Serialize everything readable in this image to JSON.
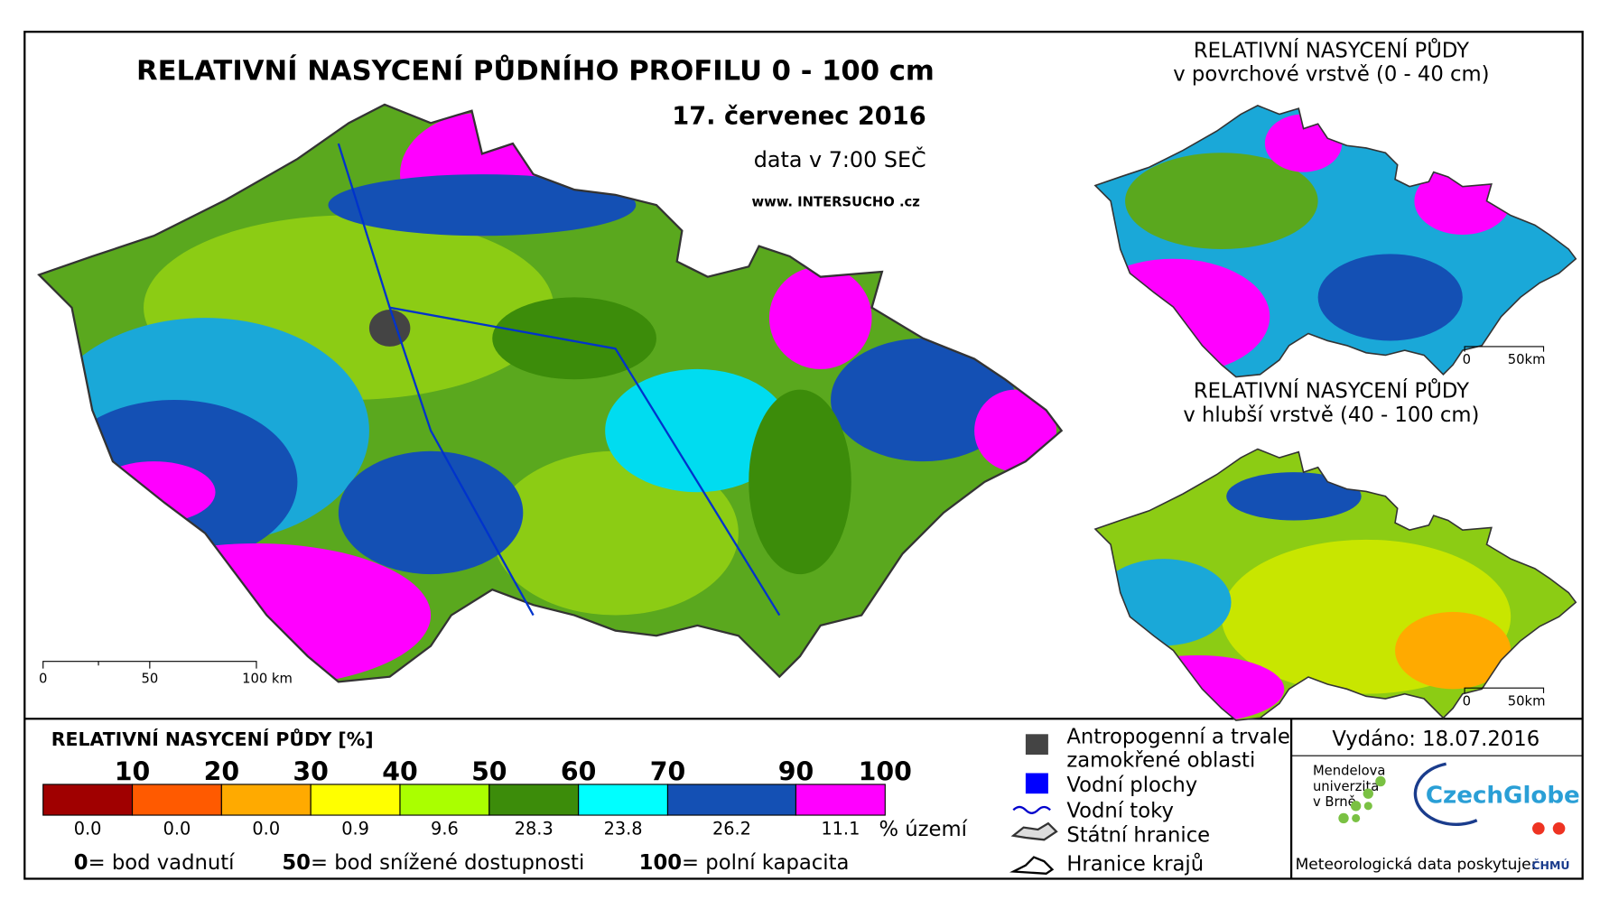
{
  "main_map": {
    "title": "RELATIVNÍ NASYCENÍ PŮDNÍHO PROFILU 0 - 100 cm",
    "date": "17. červenec 2016",
    "time": "data v 7:00 SEČ",
    "website": "www. INTERSUCHO .cz",
    "scale_labels": [
      "0",
      "50",
      "100 km"
    ]
  },
  "insets": [
    {
      "title_lines": [
        "RELATIVNÍ NASYCENÍ PŮDY",
        "v povrchové vrstvě (0 - 40 cm)"
      ],
      "scale_labels": [
        "0",
        "50km"
      ]
    },
    {
      "title_lines": [
        "RELATIVNÍ NASYCENÍ PŮDY",
        "v hlubší vrstvě (40 - 100 cm)"
      ],
      "scale_labels": [
        "0",
        "50km"
      ]
    }
  ],
  "legend": {
    "title": "RELATIVNÍ NASYCENÍ PŮDY [%]",
    "unit_label": "% území",
    "classes": [
      {
        "color": "#a00000",
        "upper": 10,
        "share": "0.0"
      },
      {
        "color": "#ff5a00",
        "upper": 20,
        "share": "0.0"
      },
      {
        "color": "#ffaa00",
        "upper": 30,
        "share": "0.0"
      },
      {
        "color": "#ffff00",
        "upper": 40,
        "share": "0.9"
      },
      {
        "color": "#aaff00",
        "upper": 50,
        "share": "9.6"
      },
      {
        "color": "#3c8c0a",
        "upper": 60,
        "share": "28.3"
      },
      {
        "color": "#00ffff",
        "upper": 70,
        "share": "23.8"
      },
      {
        "color": "#1450b4",
        "upper": 90,
        "share": "26.2"
      },
      {
        "color": "#ff00ff",
        "upper": 100,
        "share": "11.1"
      }
    ],
    "notes": [
      {
        "value": "0",
        "text": "= bod vadnutí"
      },
      {
        "value": "50",
        "text": "= bod snížené dostupnosti"
      },
      {
        "value": "100",
        "text": "= polní kapacita"
      }
    ]
  },
  "side_legend": [
    {
      "lines": [
        "Antropogenní a trvale",
        "zamokřené oblasti"
      ]
    },
    {
      "lines": [
        "Vodní plochy"
      ]
    },
    {
      "lines": [
        "Vodní toky"
      ]
    },
    {
      "lines": [
        "Státní hranice"
      ]
    },
    {
      "lines": [
        "Hranice krajů"
      ]
    }
  ],
  "issued": "Vydáno: 18.07.2016",
  "providers": {
    "mendelu": [
      "Mendelova",
      "univerzita",
      "v Brně"
    ],
    "czechglobe": "CzechGlobe",
    "meteo": "Meteorologická data poskytuje:",
    "chmu": "ČHMÚ"
  }
}
